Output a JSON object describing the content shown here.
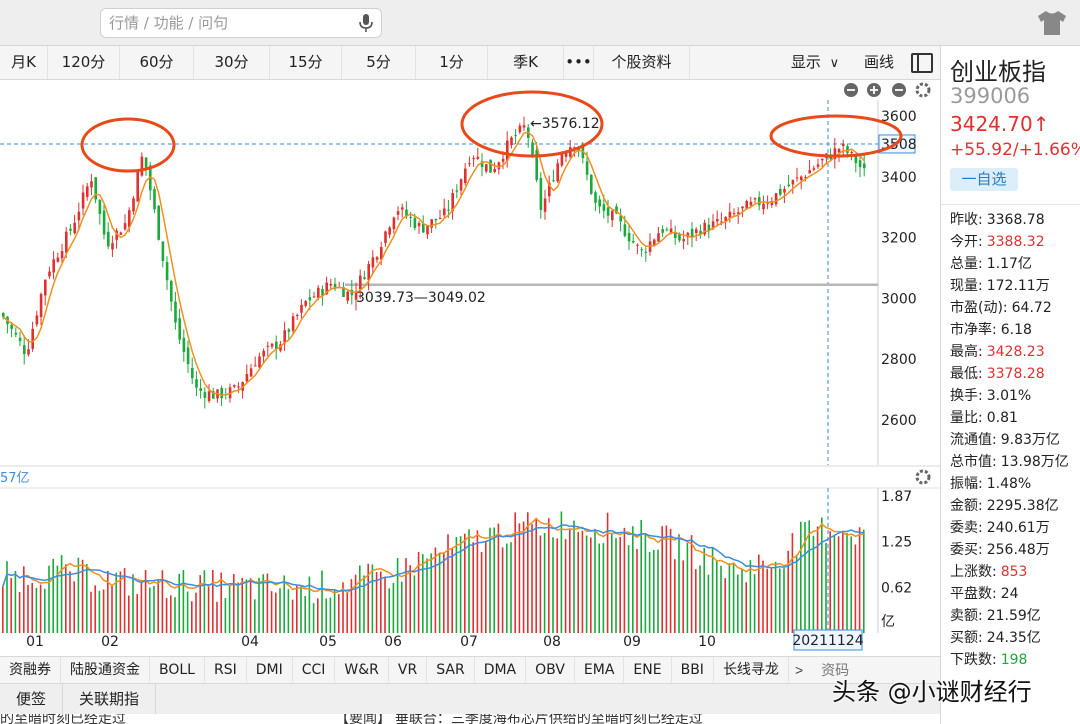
{
  "search": {
    "placeholder": "行情 / 功能 / 问句"
  },
  "icons": {
    "mic": "microphone-icon",
    "theme": "tshirt-icon",
    "layout": "layout-panel-icon"
  },
  "toolbar": {
    "periods": [
      "月K",
      "120分",
      "60分",
      "30分",
      "15分",
      "5分",
      "1分",
      "季K",
      "•••",
      "个股资料"
    ],
    "display_label": "显示",
    "draw_label": "画线"
  },
  "chart": {
    "price_axis": [
      "3600",
      "3508",
      "3400",
      "3200",
      "3000",
      "2800",
      "2600"
    ],
    "high_label": "←3576.12",
    "support_label": "3039.73—3049.02",
    "volume_header": "57亿",
    "volume_axis": [
      "1.87",
      "1.25",
      "0.62",
      "亿"
    ],
    "months": [
      "01",
      "02",
      "04",
      "05",
      "06",
      "07",
      "08",
      "09",
      "10"
    ],
    "current_date": "20211124",
    "colors": {
      "up": "#e03030",
      "down": "#1aaa3a",
      "ma": "#f0901e",
      "ma2": "#3a8ee0",
      "circle": "#e84a1a",
      "crosshair": "#3a8ee0"
    }
  },
  "indicators": [
    "资融券",
    "陆股通资金",
    "BOLL",
    "RSI",
    "DMI",
    "CCI",
    "W&R",
    "VR",
    "SAR",
    "DMA",
    "OBV",
    "EMA",
    "ENE",
    "BBI",
    "长线寻龙"
  ],
  "indicators_more": ">",
  "indicators_last": "资码",
  "bottom_tabs": [
    "便签",
    "关联期指"
  ],
  "news": [
    "的至暗时刻已经走过",
    "【要闻】 垂联合：三季度海布芯片供给的至暗时刻已经走过"
  ],
  "panel": {
    "name": "创业板指",
    "code": "399006",
    "price": "3424.70↑",
    "change": "+55.92/+1.66%",
    "watch_label": "一自选",
    "stats": [
      {
        "label": "昨收:",
        "value": "3368.78",
        "color": "normal"
      },
      {
        "label": "今开:",
        "value": "3388.32",
        "color": "red"
      },
      {
        "label": "总量:",
        "value": "1.17亿",
        "color": "normal"
      },
      {
        "label": "现量:",
        "value": "172.11万",
        "color": "normal"
      },
      {
        "label": "市盈(动):",
        "value": "64.72",
        "color": "normal"
      },
      {
        "label": "市净率:",
        "value": "6.18",
        "color": "normal"
      },
      {
        "label": "最高:",
        "value": "3428.23",
        "color": "red"
      },
      {
        "label": "最低:",
        "value": "3378.28",
        "color": "red"
      },
      {
        "label": "换手:",
        "value": "3.01%",
        "color": "normal"
      },
      {
        "label": "量比:",
        "value": "0.81",
        "color": "normal"
      },
      {
        "label": "流通值:",
        "value": "9.83万亿",
        "color": "normal"
      },
      {
        "label": "总市值:",
        "value": "13.98万亿",
        "color": "normal"
      },
      {
        "label": "振幅:",
        "value": "1.48%",
        "color": "normal"
      },
      {
        "label": "金额:",
        "value": "2295.38亿",
        "color": "normal"
      },
      {
        "label": "委卖:",
        "value": "240.61万",
        "color": "normal"
      },
      {
        "label": "委买:",
        "value": "256.48万",
        "color": "normal"
      },
      {
        "label": "上涨数:",
        "value": "853",
        "color": "red"
      },
      {
        "label": "平盘数:",
        "value": "24",
        "color": "normal"
      },
      {
        "label": "卖额:",
        "value": "21.59亿",
        "color": "normal"
      },
      {
        "label": "买额:",
        "value": "24.35亿",
        "color": "normal"
      },
      {
        "label": "下跌数:",
        "value": "198",
        "color": "green"
      }
    ]
  },
  "watermark": "头条 @小谜财经行"
}
